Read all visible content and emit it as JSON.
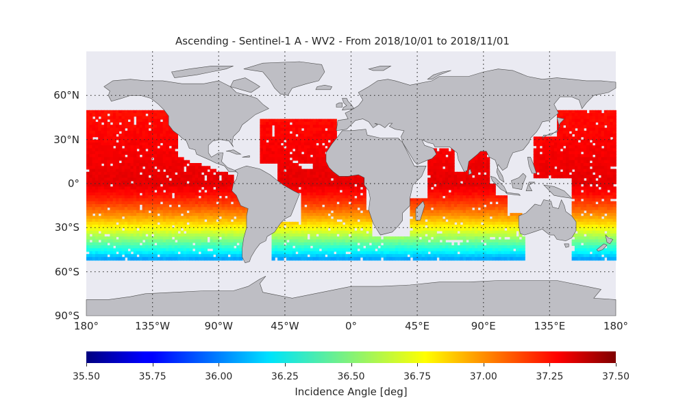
{
  "title": "Ascending - Sentinel-1 A - WV2 - From 2018/10/01 to 2018/11/01",
  "map": {
    "projection": "equirectangular",
    "lat_range": [
      -90,
      90
    ],
    "lon_range": [
      -180,
      180
    ],
    "grid": "dotted",
    "lat_ticks": [
      {
        "value": 60,
        "label": "60°N"
      },
      {
        "value": 30,
        "label": "30°N"
      },
      {
        "value": 0,
        "label": "0°"
      },
      {
        "value": -30,
        "label": "30°S"
      },
      {
        "value": -60,
        "label": "60°S"
      },
      {
        "value": -90,
        "label": "90°S"
      }
    ],
    "lon_ticks": [
      {
        "value": -180,
        "label": "180°"
      },
      {
        "value": -135,
        "label": "135°W"
      },
      {
        "value": -90,
        "label": "90°W"
      },
      {
        "value": -45,
        "label": "45°W"
      },
      {
        "value": 0,
        "label": "0°"
      },
      {
        "value": 45,
        "label": "45°E"
      },
      {
        "value": 90,
        "label": "90°E"
      },
      {
        "value": 135,
        "label": "135°E"
      },
      {
        "value": 180,
        "label": "180°"
      }
    ],
    "colors": {
      "ocean": "#eaeaf2",
      "land": "#bebec4",
      "coast": "#4a4a4a",
      "grid": "#333333"
    }
  },
  "colorbar": {
    "colormap": "jet",
    "range": [
      35.5,
      37.5
    ],
    "ticks": [
      "35.50",
      "35.75",
      "36.00",
      "36.25",
      "36.50",
      "36.75",
      "37.00",
      "37.25",
      "37.50"
    ],
    "label": "Incidence Angle [deg]"
  }
}
